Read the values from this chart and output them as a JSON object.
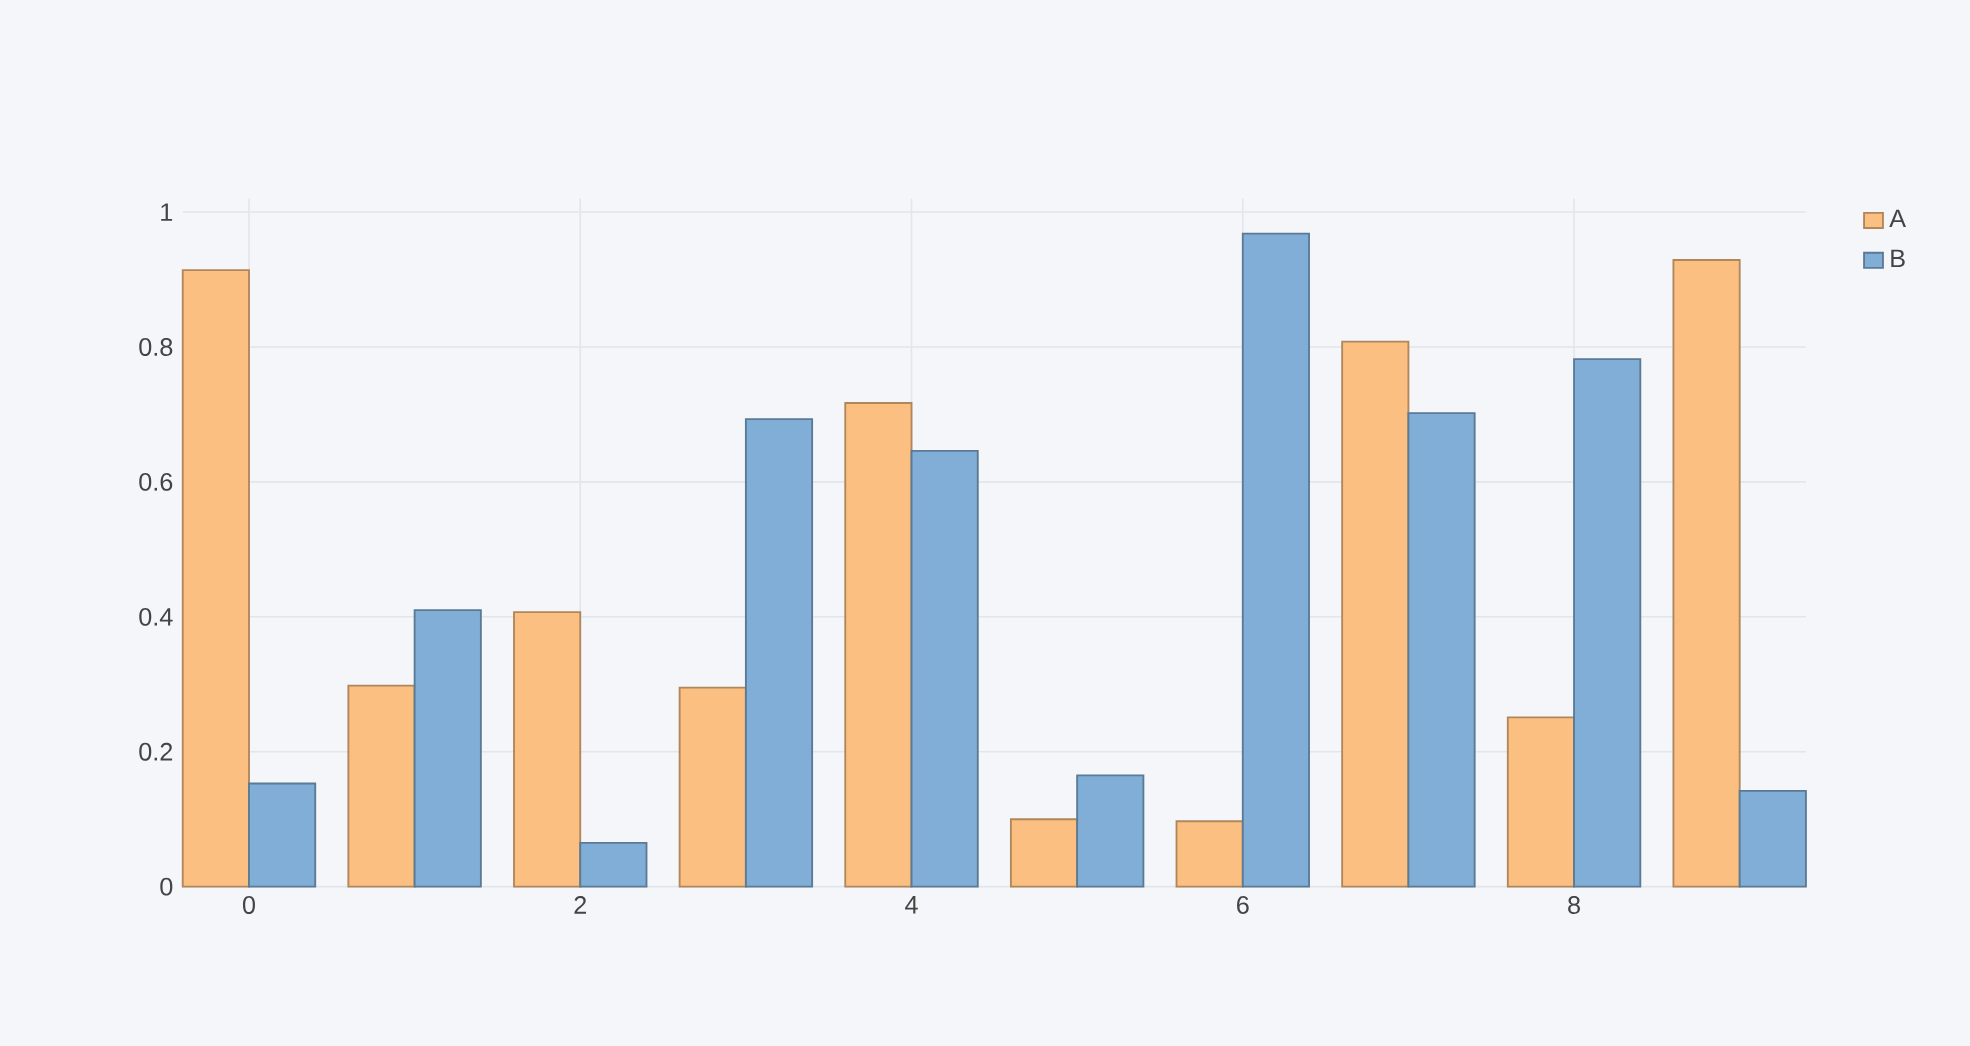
{
  "chart_data": {
    "type": "bar",
    "x": [
      0,
      1,
      2,
      3,
      4,
      5,
      6,
      7,
      8,
      9
    ],
    "series": [
      {
        "name": "A",
        "color": "#fbbf82",
        "values": [
          0.914,
          0.298,
          0.407,
          0.295,
          0.717,
          0.1,
          0.097,
          0.808,
          0.251,
          0.929
        ]
      },
      {
        "name": "B",
        "color": "#80aed6",
        "values": [
          0.153,
          0.41,
          0.065,
          0.693,
          0.646,
          0.165,
          0.968,
          0.702,
          0.782,
          0.142
        ]
      }
    ],
    "xlim": [
      -0.4,
      9.4
    ],
    "ylim": [
      0,
      1.02
    ],
    "xticks": [
      0,
      2,
      4,
      6,
      8
    ],
    "yticks": [
      0,
      0.2,
      0.4,
      0.6,
      0.8,
      1
    ],
    "grid": true,
    "legend": "top right"
  }
}
